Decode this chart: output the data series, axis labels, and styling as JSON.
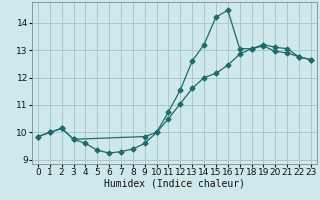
{
  "background_color": "#cfe8ec",
  "grid_color": "#aac8cc",
  "line_color": "#1e6b6b",
  "curve1_x": [
    0,
    1,
    2,
    3,
    4,
    5,
    6,
    7,
    8,
    9,
    10,
    11,
    12,
    13,
    14,
    15,
    16,
    17,
    18,
    19,
    20,
    21,
    22,
    23
  ],
  "curve1_y": [
    9.85,
    10.0,
    10.15,
    9.75,
    9.6,
    9.35,
    9.25,
    9.3,
    9.4,
    9.6,
    10.0,
    10.75,
    11.55,
    12.6,
    13.2,
    14.2,
    14.45,
    13.05,
    13.05,
    13.2,
    13.1,
    13.05,
    12.75,
    12.65
  ],
  "curve2_x": [
    0,
    1,
    2,
    3,
    9,
    10,
    11,
    12,
    13,
    14,
    15,
    16,
    17,
    18,
    19,
    20,
    21,
    22,
    23
  ],
  "curve2_y": [
    9.85,
    10.0,
    10.15,
    9.75,
    9.85,
    10.0,
    10.5,
    11.05,
    11.6,
    12.0,
    12.15,
    12.45,
    12.85,
    13.05,
    13.15,
    12.95,
    12.9,
    12.75,
    12.65
  ],
  "xlabel": "Humidex (Indice chaleur)",
  "xlim": [
    -0.5,
    23.5
  ],
  "ylim": [
    8.85,
    14.75
  ],
  "xticks": [
    0,
    1,
    2,
    3,
    4,
    5,
    6,
    7,
    8,
    9,
    10,
    11,
    12,
    13,
    14,
    15,
    16,
    17,
    18,
    19,
    20,
    21,
    22,
    23
  ],
  "yticks": [
    9,
    10,
    11,
    12,
    13,
    14
  ],
  "xlabel_fontsize": 7,
  "tick_fontsize": 6.5,
  "marker_size": 2.5,
  "line_width": 0.9
}
